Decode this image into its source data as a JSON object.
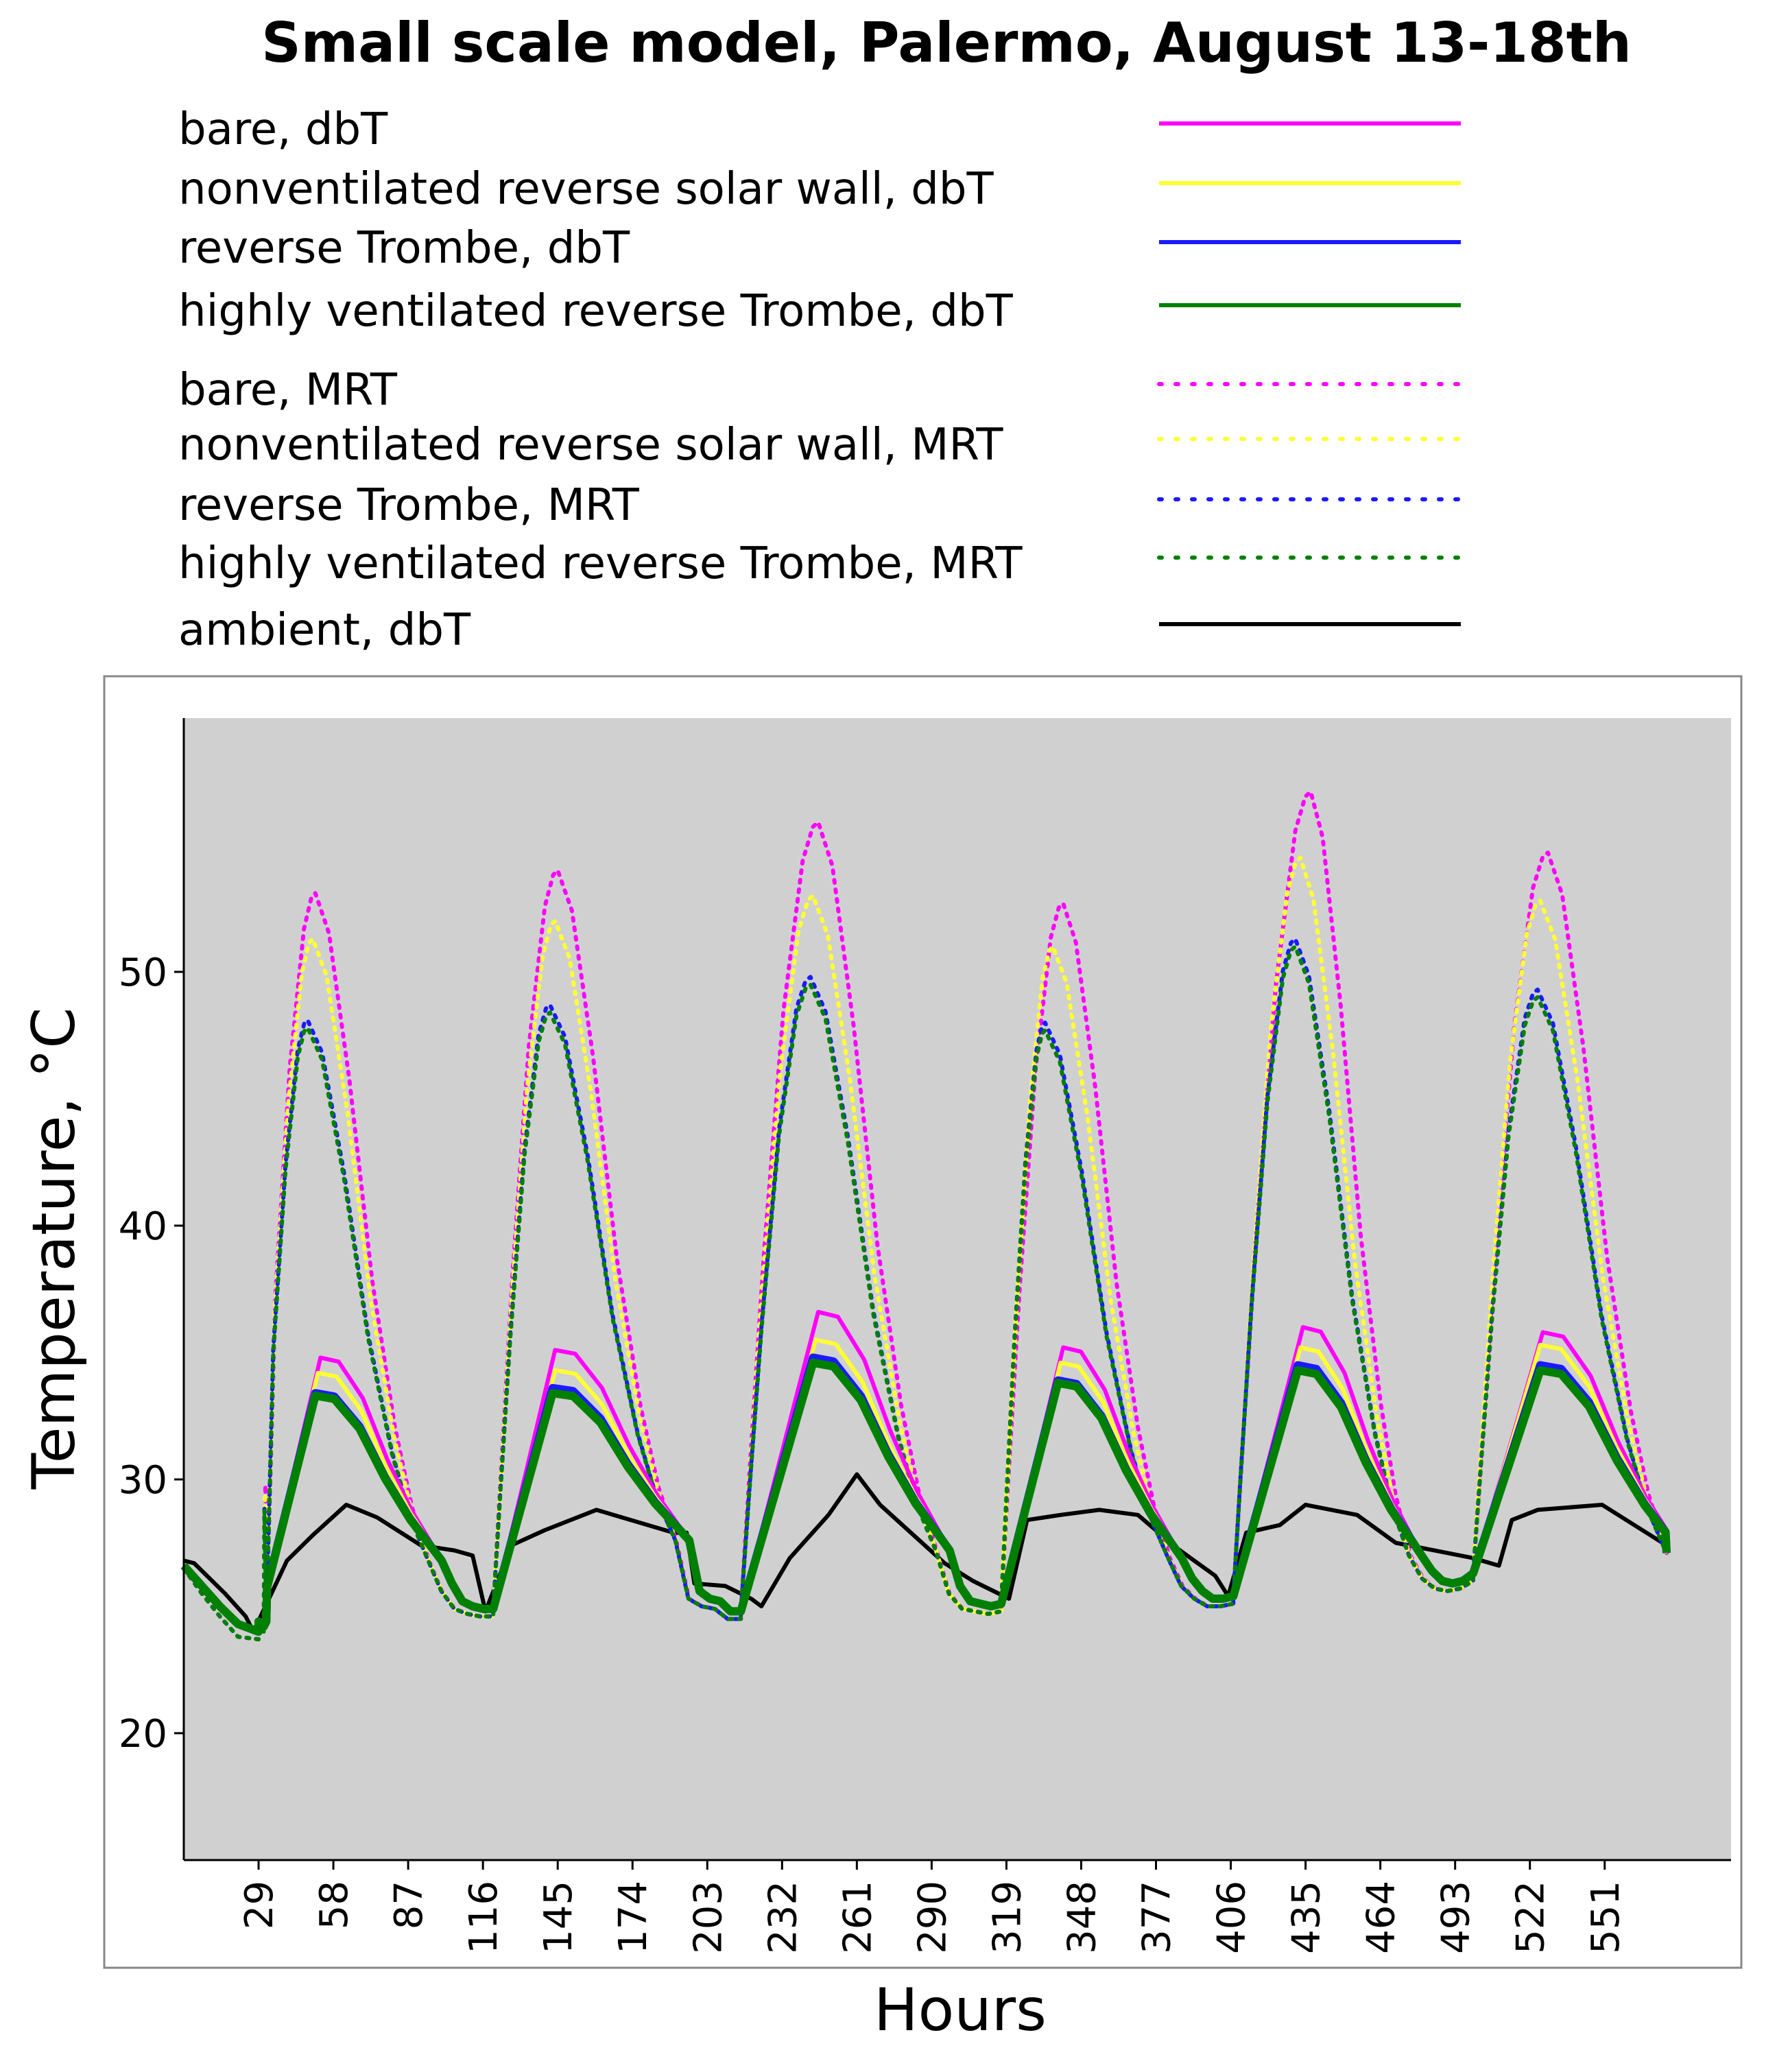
{
  "chart_data": {
    "type": "line",
    "title": "Small scale model, Palermo, August 13-18th",
    "xlabel": "Hours",
    "ylabel": "Temperature, °C",
    "xlim": [
      0,
      600
    ],
    "ylim": [
      15,
      60
    ],
    "xticks": [
      29,
      58,
      87,
      116,
      145,
      174,
      203,
      232,
      261,
      290,
      319,
      348,
      377,
      406,
      435,
      464,
      493,
      522,
      551
    ],
    "yticks": [
      20,
      30,
      40,
      50
    ],
    "grid": false,
    "background": "#d0d0d0",
    "legend_position": "top",
    "series": [
      {
        "name": "bare, dbT",
        "color": "#ff00ff",
        "style": "solid",
        "peaks": [
          [
            53,
            34.8
          ],
          [
            144,
            35.1
          ],
          [
            246,
            36.6
          ],
          [
            341,
            35.2
          ],
          [
            434,
            36.0
          ],
          [
            527,
            35.8
          ]
        ]
      },
      {
        "name": "nonventilated reverse solar wall, dbT",
        "color": "#ffff33",
        "style": "solid",
        "peaks": [
          [
            52,
            34.2
          ],
          [
            144,
            34.3
          ],
          [
            245,
            35.5
          ],
          [
            340,
            34.6
          ],
          [
            433,
            35.2
          ],
          [
            526,
            35.3
          ]
        ]
      },
      {
        "name": "reverse Trombe, dbT",
        "color": "#1a1aff",
        "style": "solid",
        "peaks": [
          [
            51,
            33.4
          ],
          [
            143,
            33.6
          ],
          [
            244,
            34.8
          ],
          [
            339,
            33.9
          ],
          [
            432,
            34.5
          ],
          [
            526,
            34.5
          ]
        ]
      },
      {
        "name": "highly ventilated reverse Trombe, dbT",
        "color": "#008000",
        "style": "solid",
        "peaks": [
          [
            51,
            33.3
          ],
          [
            143,
            33.4
          ],
          [
            244,
            34.6
          ],
          [
            339,
            33.8
          ],
          [
            432,
            34.3
          ],
          [
            526,
            34.3
          ]
        ]
      },
      {
        "name": "bare, MRT",
        "color": "#ff00ff",
        "style": "dotted",
        "peaks": [
          [
            51,
            53.1
          ],
          [
            145,
            54.0
          ],
          [
            246,
            55.9
          ],
          [
            341,
            52.7
          ],
          [
            437,
            57.1
          ],
          [
            529,
            54.7
          ]
        ]
      },
      {
        "name": "nonventilated reverse solar wall, MRT",
        "color": "#ffff33",
        "style": "dotted",
        "peaks": [
          [
            50,
            51.3
          ],
          [
            144,
            52.0
          ],
          [
            244,
            53.0
          ],
          [
            337,
            51.0
          ],
          [
            433,
            54.5
          ],
          [
            526,
            52.8
          ]
        ]
      },
      {
        "name": "reverse Trombe, MRT",
        "color": "#1a1aff",
        "style": "dotted",
        "peaks": [
          [
            48,
            48.1
          ],
          [
            142,
            48.7
          ],
          [
            243,
            49.8
          ],
          [
            334,
            48.0
          ],
          [
            431,
            51.3
          ],
          [
            525,
            49.3
          ]
        ]
      },
      {
        "name": "highly ventilated reverse Trombe, MRT",
        "color": "#008000",
        "style": "dotted",
        "peaks": [
          [
            48,
            47.8
          ],
          [
            142,
            48.4
          ],
          [
            243,
            49.5
          ],
          [
            334,
            47.7
          ],
          [
            431,
            51.0
          ],
          [
            525,
            49.0
          ]
        ]
      },
      {
        "name": "ambient, dbT",
        "color": "#000000",
        "style": "solid",
        "x": [
          0,
          4,
          16,
          24,
          27,
          40,
          50,
          63,
          75,
          92,
          105,
          112,
          117,
          127,
          140,
          160,
          180,
          190,
          195,
          198,
          210,
          220,
          224,
          235,
          250,
          261,
          270,
          295,
          306,
          316,
          320,
          327,
          340,
          355,
          370,
          385,
          400,
          405,
          412,
          425,
          435,
          455,
          470,
          485,
          500,
          510,
          515,
          525,
          550,
          575
        ],
        "y": [
          26.8,
          26.7,
          25.5,
          24.6,
          24.0,
          26.8,
          27.8,
          29.0,
          28.5,
          27.4,
          27.2,
          27.0,
          24.8,
          27.4,
          28.0,
          28.8,
          28.2,
          27.9,
          27.9,
          25.9,
          25.8,
          25.3,
          25.0,
          26.9,
          28.6,
          30.2,
          29.0,
          26.7,
          26.0,
          25.5,
          25.3,
          28.4,
          28.6,
          28.8,
          28.6,
          27.3,
          26.2,
          25.4,
          27.9,
          28.2,
          29.0,
          28.6,
          27.5,
          27.2,
          26.9,
          26.6,
          28.4,
          28.8,
          29.0,
          27.4
        ]
      }
    ]
  }
}
